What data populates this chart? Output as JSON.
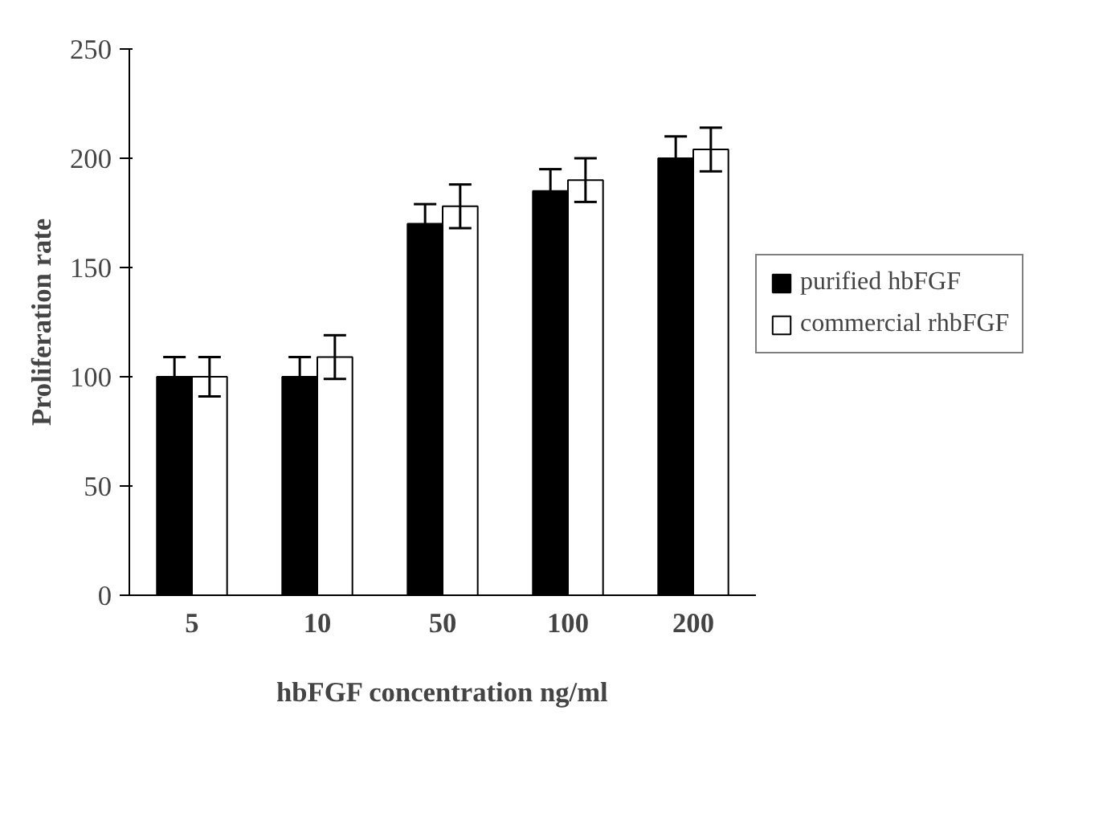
{
  "chart_data": {
    "type": "bar",
    "xlabel": "hbFGF concentration ng/ml",
    "ylabel": "Proliferation rate",
    "categories": [
      "5",
      "10",
      "50",
      "100",
      "200"
    ],
    "series": [
      {
        "name": "purified hbFGF",
        "color": "#000000",
        "values": [
          100,
          100,
          170,
          185,
          200
        ],
        "errors": [
          9,
          9,
          9,
          10,
          10
        ]
      },
      {
        "name": "commercial rhbFGF",
        "color": "#ffffff",
        "values": [
          100,
          109,
          178,
          190,
          204
        ],
        "errors": [
          9,
          10,
          10,
          10,
          10
        ]
      }
    ],
    "ylim": [
      0,
      250
    ],
    "yticks": [
      0,
      50,
      100,
      150,
      200,
      250
    ],
    "grid": false,
    "legend": "right"
  }
}
